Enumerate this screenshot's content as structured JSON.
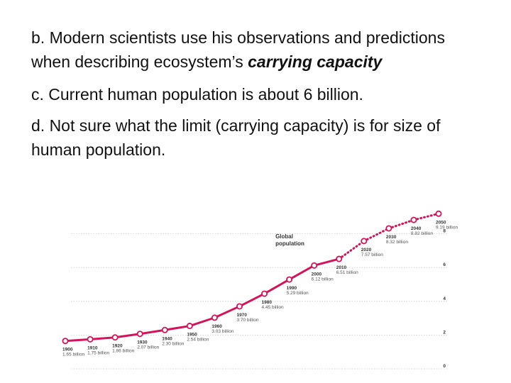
{
  "slide": {
    "para_b_text": "b. Modern scientists use his observations and predictions when describing ecosystem’s ",
    "para_b_emphasis": "carrying capacity",
    "para_c": "c. Current human population is about 6 billion.",
    "para_d": "d. Not sure what the limit (carrying capacity) is for size of human population."
  },
  "chart_data": {
    "type": "line",
    "title": "Global population",
    "x": [
      1900,
      1910,
      1920,
      1930,
      1940,
      1950,
      1960,
      1970,
      1980,
      1990,
      2000,
      2010,
      2020,
      2030,
      2040,
      2050
    ],
    "values": [
      1.65,
      1.75,
      1.86,
      2.07,
      2.3,
      2.54,
      3.03,
      3.7,
      4.45,
      5.29,
      6.12,
      6.51,
      7.57,
      8.32,
      8.82,
      9.19
    ],
    "labels": [
      "1.65 billion",
      "1.75 billion",
      "1.86 billion",
      "2.07 billion",
      "2.30 billion",
      "2.54 billion",
      "3.03 billion",
      "3.70 billion",
      "4.45 billion",
      "5.29 billion",
      "6.12 billion",
      "6.51 billion",
      "7.57 billion",
      "8.32 billion",
      "8.82 billion",
      "9.19 billion"
    ],
    "projected_from": 2010,
    "yticks": [
      0,
      2,
      4,
      6,
      8
    ],
    "ylim": [
      0,
      10
    ],
    "grid": "dotted horizontal",
    "line_color": "#d4145a",
    "marker_fill": "#ffffff"
  }
}
